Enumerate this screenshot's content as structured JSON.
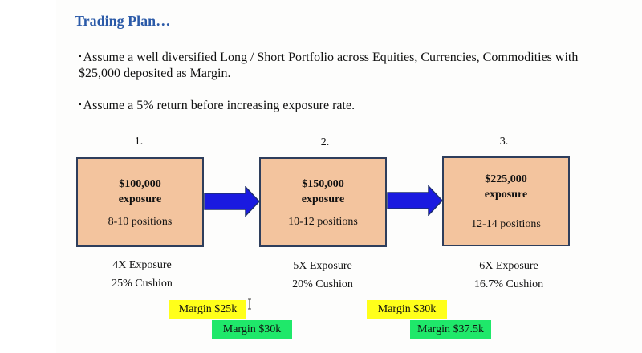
{
  "title": "Trading Plan…",
  "bullets": [
    "Assume a well diversified Long / Short Portfolio across Equities, Currencies, Commodities with $25,000 deposited as Margin.",
    "Assume a 5% return before increasing exposure rate."
  ],
  "bullet_mark": "▪",
  "steps": [
    {
      "number": "1.",
      "amount": "$100,000",
      "label": "exposure",
      "positions": "8-10 positions",
      "leverage": "4X Exposure",
      "cushion": "25% Cushion"
    },
    {
      "number": "2.",
      "amount": "$150,000",
      "label": "exposure",
      "positions": "10-12 positions",
      "leverage": "5X Exposure",
      "cushion": "20% Cushion"
    },
    {
      "number": "3.",
      "amount": "$225,000",
      "label": "exposure",
      "positions": "12-14 positions",
      "leverage": "6X Exposure",
      "cushion": "16.7% Cushion"
    }
  ],
  "highlights": [
    {
      "text": "Margin $25k",
      "color": "#ffff1a"
    },
    {
      "text": "Margin $30k",
      "color": "#1fe86a"
    },
    {
      "text": "Margin $30k",
      "color": "#ffff1a"
    },
    {
      "text": "Margin $37.5k",
      "color": "#1fe86a"
    }
  ],
  "colors": {
    "title": "#2b5aa8",
    "box_fill": "#f3c49e",
    "box_border": "#2e3e5c",
    "arrow_fill": "#1a1ae0",
    "arrow_stroke": "#1e2f6e"
  },
  "cursor_icon": "text-cursor-icon"
}
